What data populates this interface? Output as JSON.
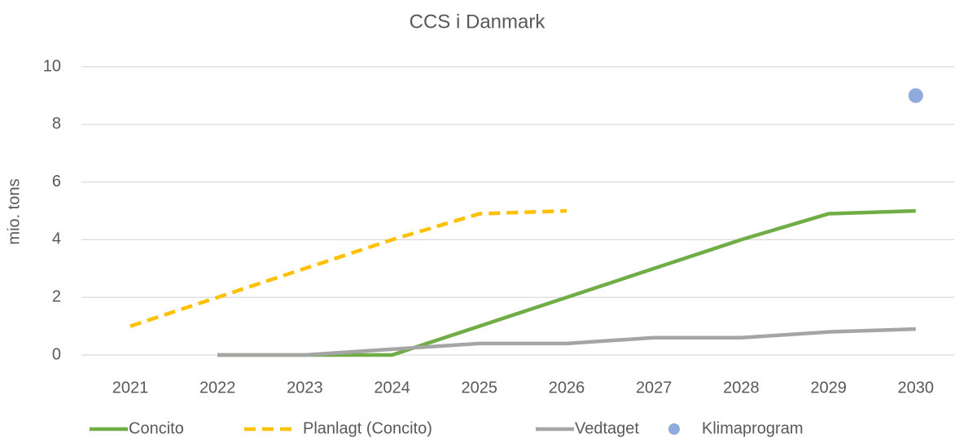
{
  "chart_data": {
    "type": "line",
    "title": "CCS i Danmark",
    "y_label": "mio. tons",
    "categories": [
      "2021",
      "2022",
      "2023",
      "2024",
      "2025",
      "2026",
      "2027",
      "2028",
      "2029",
      "2030"
    ],
    "series": [
      {
        "name": "Concito",
        "color": "#70ad47",
        "mode": "line",
        "dash": false,
        "values": [
          null,
          0,
          0,
          0,
          1,
          2,
          3,
          4,
          4.9,
          5
        ]
      },
      {
        "name": "Planlagt (Concito)",
        "color": "#ffc000",
        "mode": "line",
        "dash": true,
        "values": [
          1,
          2,
          3,
          4,
          4.9,
          5,
          null,
          null,
          null,
          null
        ]
      },
      {
        "name": "Vedtaget",
        "color": "#a5a5a5",
        "mode": "line",
        "dash": false,
        "values": [
          null,
          0,
          0,
          0.2,
          0.4,
          0.4,
          0.6,
          0.6,
          0.8,
          0.9
        ]
      },
      {
        "name": "Klimaprogram",
        "color": "#8faadc",
        "mode": "markers",
        "dash": false,
        "values": [
          null,
          null,
          null,
          null,
          null,
          null,
          null,
          null,
          null,
          9
        ]
      }
    ],
    "ylim": [
      0,
      10
    ],
    "yticks": [
      0,
      2,
      4,
      6,
      8,
      10
    ],
    "grid": true,
    "legend": "bottom"
  }
}
